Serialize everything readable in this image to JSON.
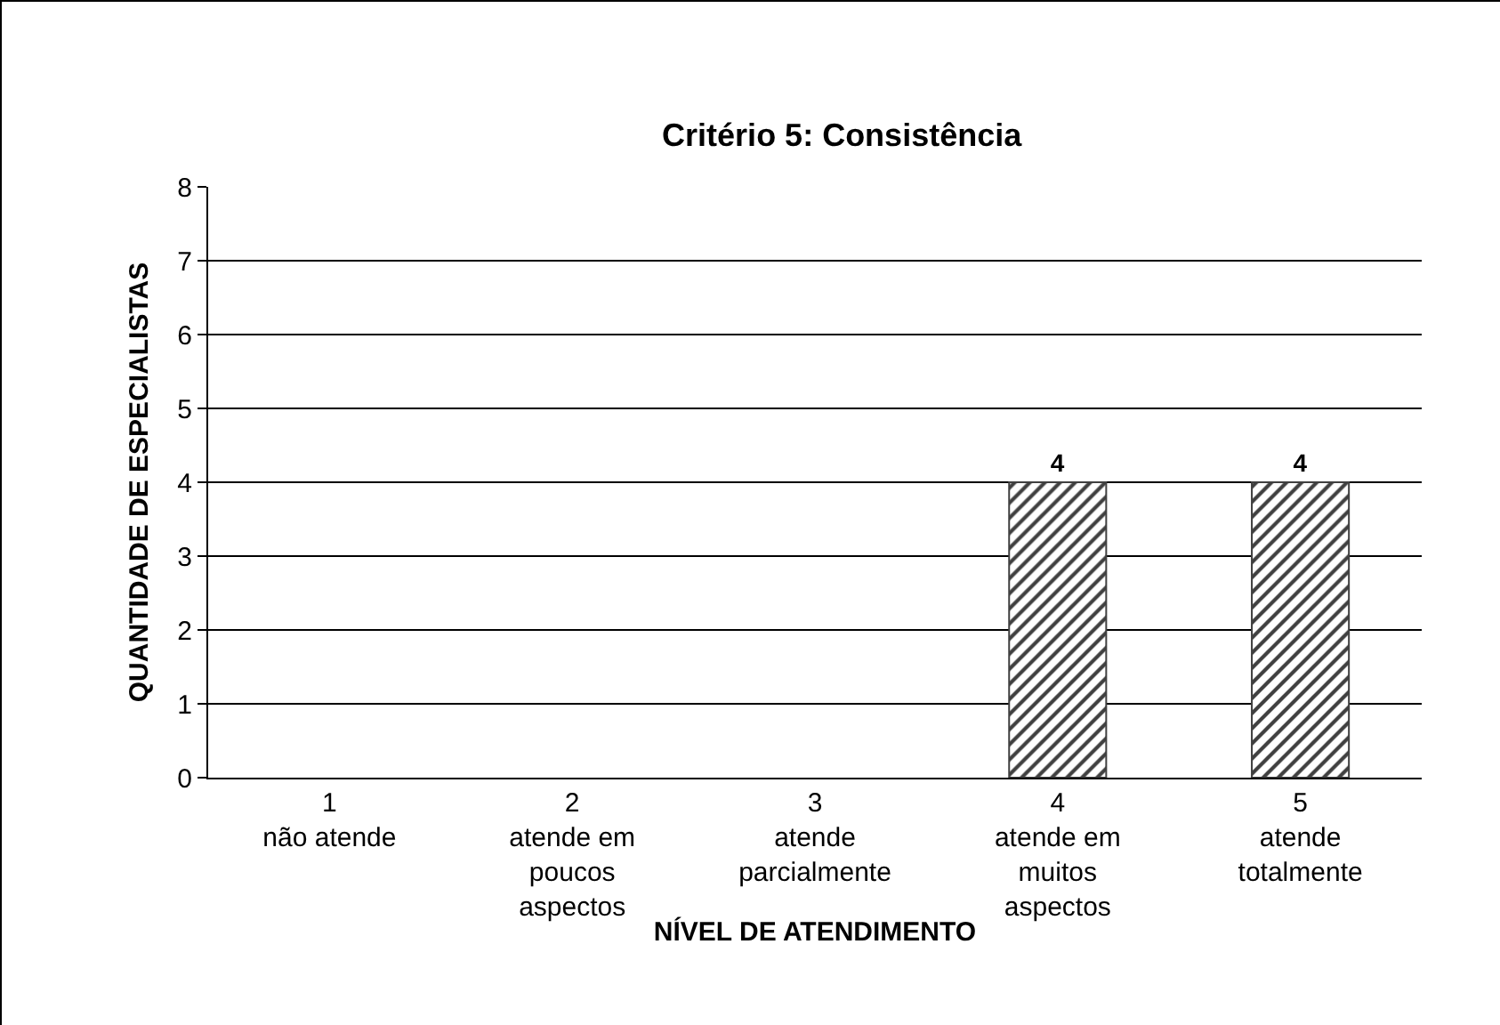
{
  "chart_data": {
    "type": "bar",
    "title": "Critério 5: Consistência",
    "xlabel": "NÍVEL DE ATENDIMENTO",
    "ylabel": "QUANTIDADE DE ESPECIALISTAS",
    "categories": [
      "1\nnão atende",
      "2\natende em\npoucos\naspectos",
      "3\natende\nparcialmente",
      "4\natende em\nmuitos\naspectos",
      "5\natende\ntotalmente"
    ],
    "values": [
      0,
      0,
      0,
      4,
      4
    ],
    "value_labels": [
      null,
      null,
      null,
      "4",
      "4"
    ],
    "color": "#404040",
    "ylim": [
      0,
      8
    ],
    "yticks": [
      0,
      1,
      2,
      3,
      4,
      5,
      6,
      7,
      8
    ],
    "grid": "y"
  }
}
